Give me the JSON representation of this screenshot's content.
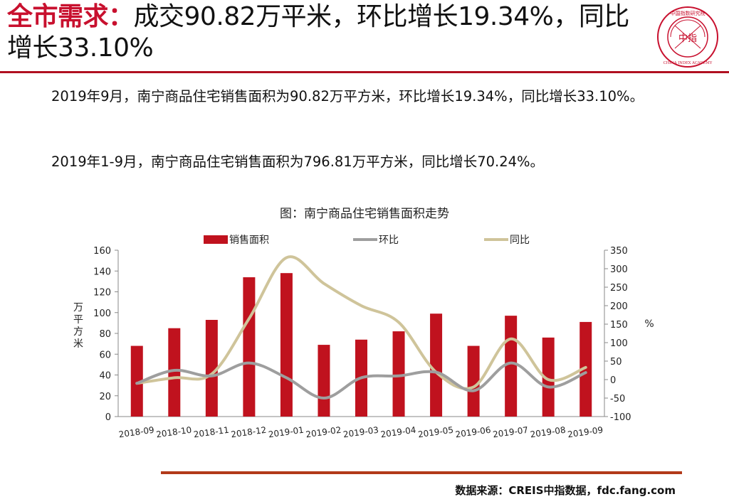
{
  "header": {
    "highlight": "全市需求：",
    "title_rest": "成交90.82万平米，环比增长19.34%，同比增长33.10%"
  },
  "logo": {
    "icon": "china-index-academy-seal-icon",
    "color": "#c8102e",
    "ring_cn": "中国指数研究院",
    "ring_en": "CHINA INDEX ACADEMY",
    "center": "中指"
  },
  "body": {
    "paragraph1": "2019年9月，南宁商品住宅销售面积为90.82万平方米，环比增长19.34%，同比增长33.10%。",
    "paragraph2": "2019年1-9月，南宁商品住宅销售面积为796.81万平方米，同比增长70.24%。"
  },
  "chart_data": {
    "type": "bar",
    "title": "图：南宁商品住宅销售面积走势",
    "categories": [
      "2018-09",
      "2018-10",
      "2018-11",
      "2018-12",
      "2019-01",
      "2019-02",
      "2019-03",
      "2019-04",
      "2019-05",
      "2019-06",
      "2019-07",
      "2019-08",
      "2019-09"
    ],
    "ylabel": "万平方米",
    "y2label": "%",
    "ylim": [
      0,
      160
    ],
    "yticks": [
      0,
      20,
      40,
      60,
      80,
      100,
      120,
      140,
      160
    ],
    "y2lim": [
      -100,
      350
    ],
    "y2ticks": [
      -100,
      -50,
      0,
      50,
      100,
      150,
      200,
      250,
      300,
      350
    ],
    "grid": false,
    "legend_position": "top",
    "series": [
      {
        "name": "销售面积",
        "type": "bar",
        "axis": "left",
        "color": "#c0121e",
        "values": [
          68,
          85,
          93,
          134,
          138,
          69,
          74,
          82,
          99,
          68,
          97,
          76,
          91
        ]
      },
      {
        "name": "环比",
        "type": "line",
        "axis": "right",
        "color": "#9e9e9e",
        "values": [
          -10,
          25,
          10,
          45,
          5,
          -50,
          5,
          10,
          20,
          -30,
          45,
          -20,
          19
        ]
      },
      {
        "name": "同比",
        "type": "line",
        "axis": "right",
        "color": "#cfc49a",
        "values": [
          -10,
          5,
          15,
          165,
          330,
          260,
          200,
          155,
          20,
          -20,
          110,
          0,
          33
        ]
      }
    ]
  },
  "footer": {
    "source": "数据来源：CREIS中指数据，fdc.fang.com"
  }
}
